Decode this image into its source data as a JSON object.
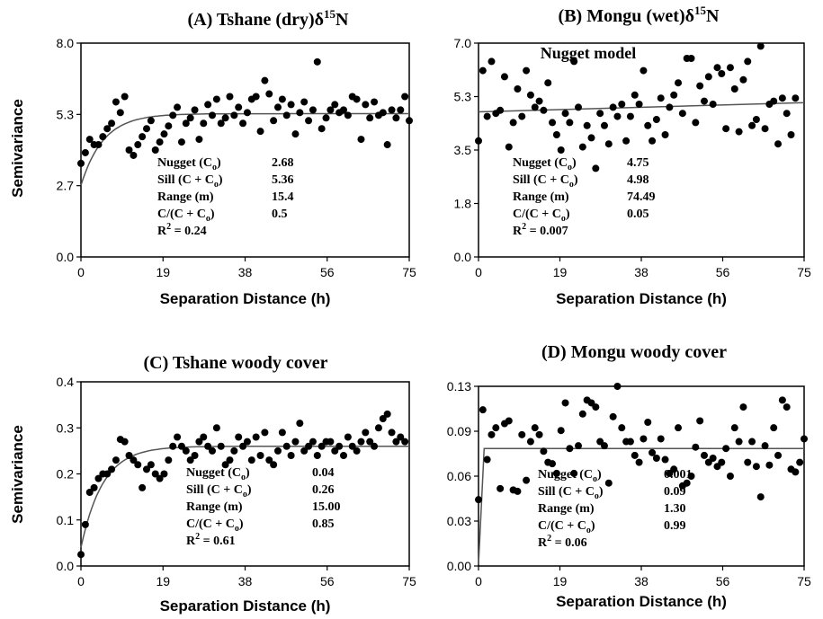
{
  "chart_data": [
    {
      "type": "scatter",
      "panel": "A",
      "title_main": "(A) Tshane (dry)δ",
      "title_sup": "15",
      "title_end": "N",
      "subtitle": "",
      "xlabel": "Separation Distance (h)",
      "ylabel": "Semivariance",
      "xlim": [
        0,
        75
      ],
      "ylim": [
        0.0,
        8.0
      ],
      "xticks": [
        "0",
        "19",
        "38",
        "56",
        "75"
      ],
      "yticks": [
        "0.0",
        "2.7",
        "5.3",
        "8.0"
      ],
      "model": {
        "nugget": 2.68,
        "sill": 5.36,
        "range": 15.4
      },
      "stats": [
        {
          "label": "Nugget (C",
          "sub": "o",
          "tail": ")",
          "value": "2.68"
        },
        {
          "label": "Sill (C + C",
          "sub": "o",
          "tail": ")",
          "value": "5.36"
        },
        {
          "label": "Range (m)",
          "sub": "",
          "tail": "",
          "value": "15.4"
        },
        {
          "label": "C/(C + C",
          "sub": "o",
          "tail": ")",
          "value": "0.5"
        }
      ],
      "r2": "= 0.24",
      "points": [
        [
          0,
          3.5
        ],
        [
          1,
          3.9
        ],
        [
          2,
          4.4
        ],
        [
          3,
          4.2
        ],
        [
          4,
          4.2
        ],
        [
          5,
          4.5
        ],
        [
          6,
          4.8
        ],
        [
          7,
          5.0
        ],
        [
          8,
          5.8
        ],
        [
          9,
          5.4
        ],
        [
          10,
          6.0
        ],
        [
          11,
          4.0
        ],
        [
          12,
          3.8
        ],
        [
          13,
          4.2
        ],
        [
          14,
          4.5
        ],
        [
          15,
          4.8
        ],
        [
          16,
          5.1
        ],
        [
          17,
          4.0
        ],
        [
          18,
          4.3
        ],
        [
          19,
          4.6
        ],
        [
          20,
          4.9
        ],
        [
          21,
          5.3
        ],
        [
          22,
          5.6
        ],
        [
          23,
          4.3
        ],
        [
          24,
          5.0
        ],
        [
          25,
          5.2
        ],
        [
          26,
          5.5
        ],
        [
          27,
          4.4
        ],
        [
          28,
          5.0
        ],
        [
          29,
          5.7
        ],
        [
          30,
          5.3
        ],
        [
          31,
          5.9
        ],
        [
          32,
          5.0
        ],
        [
          33,
          5.2
        ],
        [
          34,
          6.0
        ],
        [
          35,
          5.3
        ],
        [
          36,
          5.6
        ],
        [
          37,
          5.0
        ],
        [
          38,
          5.4
        ],
        [
          39,
          5.9
        ],
        [
          40,
          6.0
        ],
        [
          41,
          4.7
        ],
        [
          42,
          6.6
        ],
        [
          43,
          6.1
        ],
        [
          44,
          5.1
        ],
        [
          45,
          5.6
        ],
        [
          46,
          5.9
        ],
        [
          47,
          5.3
        ],
        [
          48,
          5.7
        ],
        [
          49,
          4.6
        ],
        [
          50,
          5.4
        ],
        [
          51,
          5.8
        ],
        [
          52,
          5.1
        ],
        [
          53,
          5.5
        ],
        [
          54,
          7.3
        ],
        [
          55,
          4.8
        ],
        [
          56,
          5.2
        ],
        [
          57,
          5.5
        ],
        [
          58,
          5.7
        ],
        [
          59,
          5.4
        ],
        [
          60,
          5.5
        ],
        [
          61,
          5.3
        ],
        [
          62,
          6.0
        ],
        [
          63,
          5.9
        ],
        [
          64,
          4.4
        ],
        [
          65,
          5.7
        ],
        [
          66,
          5.2
        ],
        [
          67,
          5.8
        ],
        [
          68,
          5.3
        ],
        [
          69,
          5.4
        ],
        [
          70,
          4.2
        ],
        [
          71,
          5.5
        ],
        [
          72,
          5.2
        ],
        [
          73,
          5.5
        ],
        [
          74,
          6.0
        ],
        [
          75,
          5.1
        ]
      ]
    },
    {
      "type": "scatter",
      "panel": "B",
      "title_main": "(B) Mongu (wet)δ",
      "title_sup": "15",
      "title_end": "N",
      "subtitle": "Nugget model",
      "xlabel": "Separation Distance (h)",
      "ylabel": "",
      "xlim": [
        0,
        75
      ],
      "ylim": [
        0.0,
        7.0
      ],
      "xticks": [
        "0",
        "19",
        "38",
        "56",
        "75"
      ],
      "yticks": [
        "0.0",
        "1.8",
        "3.5",
        "5.3",
        "7.0"
      ],
      "model": {
        "nugget": 4.75,
        "sill": 4.98,
        "range": 74.49
      },
      "stats": [
        {
          "label": "Nugget (C",
          "sub": "o",
          "tail": ")",
          "value": "4.75"
        },
        {
          "label": "Sill (C + C",
          "sub": "o",
          "tail": ")",
          "value": "4.98"
        },
        {
          "label": "Range (m)",
          "sub": "",
          "tail": "",
          "value": "74.49"
        },
        {
          "label": "C/(C + C",
          "sub": "o",
          "tail": ")",
          "value": "0.05"
        }
      ],
      "r2": "= 0.007",
      "points": [
        [
          0,
          3.8
        ],
        [
          1,
          6.1
        ],
        [
          2,
          4.6
        ],
        [
          3,
          6.4
        ],
        [
          4,
          4.7
        ],
        [
          5,
          4.8
        ],
        [
          6,
          5.9
        ],
        [
          7,
          3.6
        ],
        [
          8,
          4.4
        ],
        [
          9,
          5.5
        ],
        [
          10,
          4.6
        ],
        [
          11,
          6.1
        ],
        [
          12,
          5.3
        ],
        [
          13,
          4.9
        ],
        [
          14,
          5.1
        ],
        [
          15,
          4.8
        ],
        [
          16,
          5.7
        ],
        [
          17,
          4.4
        ],
        [
          18,
          4.0
        ],
        [
          19,
          3.5
        ],
        [
          20,
          4.7
        ],
        [
          21,
          4.4
        ],
        [
          22,
          6.4
        ],
        [
          23,
          4.9
        ],
        [
          24,
          3.6
        ],
        [
          25,
          4.3
        ],
        [
          26,
          3.9
        ],
        [
          27,
          2.9
        ],
        [
          28,
          4.7
        ],
        [
          29,
          4.3
        ],
        [
          30,
          3.7
        ],
        [
          31,
          4.9
        ],
        [
          32,
          4.6
        ],
        [
          33,
          5.0
        ],
        [
          34,
          3.8
        ],
        [
          35,
          4.6
        ],
        [
          36,
          5.3
        ],
        [
          37,
          5.0
        ],
        [
          38,
          6.1
        ],
        [
          39,
          4.3
        ],
        [
          40,
          3.8
        ],
        [
          41,
          4.5
        ],
        [
          42,
          5.2
        ],
        [
          43,
          4.0
        ],
        [
          44,
          4.9
        ],
        [
          45,
          5.3
        ],
        [
          46,
          5.7
        ],
        [
          47,
          4.7
        ],
        [
          48,
          6.5
        ],
        [
          49,
          6.5
        ],
        [
          50,
          4.4
        ],
        [
          51,
          5.6
        ],
        [
          52,
          5.1
        ],
        [
          53,
          5.9
        ],
        [
          54,
          5.0
        ],
        [
          55,
          6.2
        ],
        [
          56,
          6.0
        ],
        [
          57,
          4.2
        ],
        [
          58,
          6.2
        ],
        [
          59,
          5.5
        ],
        [
          60,
          4.1
        ],
        [
          61,
          5.8
        ],
        [
          62,
          6.4
        ],
        [
          63,
          4.3
        ],
        [
          64,
          4.5
        ],
        [
          65,
          6.9
        ],
        [
          66,
          4.2
        ],
        [
          67,
          5.0
        ],
        [
          68,
          5.1
        ],
        [
          69,
          3.7
        ],
        [
          70,
          5.2
        ],
        [
          71,
          4.7
        ],
        [
          72,
          4.0
        ],
        [
          73,
          5.2
        ]
      ]
    },
    {
      "type": "scatter",
      "panel": "C",
      "title_main": "(C) Tshane woody cover",
      "title_sup": "",
      "title_end": "",
      "subtitle": "",
      "xlabel": "Separation Distance (h)",
      "ylabel": "Semivariance",
      "xlim": [
        0,
        75
      ],
      "ylim": [
        0.0,
        0.4
      ],
      "xticks": [
        "0",
        "19",
        "38",
        "56",
        "75"
      ],
      "yticks": [
        "0.0",
        "0.1",
        "0.2",
        "0.3",
        "0.4"
      ],
      "model": {
        "nugget": 0.04,
        "sill": 0.26,
        "range": 15.0
      },
      "stats": [
        {
          "label": "Nugget (C",
          "sub": "o",
          "tail": ")",
          "value": "0.04"
        },
        {
          "label": "Sill (C + C",
          "sub": "o",
          "tail": ")",
          "value": "0.26"
        },
        {
          "label": "Range (m)",
          "sub": "",
          "tail": "",
          "value": "15.00"
        },
        {
          "label": "C/(C + C",
          "sub": "o",
          "tail": ")",
          "value": "0.85"
        }
      ],
      "r2": "= 0.61",
      "points": [
        [
          0,
          0.025
        ],
        [
          1,
          0.09
        ],
        [
          2,
          0.16
        ],
        [
          3,
          0.17
        ],
        [
          4,
          0.19
        ],
        [
          5,
          0.2
        ],
        [
          6,
          0.2
        ],
        [
          7,
          0.21
        ],
        [
          8,
          0.23
        ],
        [
          9,
          0.275
        ],
        [
          10,
          0.27
        ],
        [
          11,
          0.24
        ],
        [
          12,
          0.23
        ],
        [
          13,
          0.22
        ],
        [
          14,
          0.17
        ],
        [
          15,
          0.21
        ],
        [
          16,
          0.22
        ],
        [
          17,
          0.2
        ],
        [
          18,
          0.19
        ],
        [
          19,
          0.2
        ],
        [
          20,
          0.23
        ],
        [
          21,
          0.26
        ],
        [
          22,
          0.28
        ],
        [
          23,
          0.26
        ],
        [
          24,
          0.25
        ],
        [
          25,
          0.23
        ],
        [
          26,
          0.24
        ],
        [
          27,
          0.27
        ],
        [
          28,
          0.28
        ],
        [
          29,
          0.26
        ],
        [
          30,
          0.25
        ],
        [
          31,
          0.3
        ],
        [
          32,
          0.26
        ],
        [
          33,
          0.22
        ],
        [
          34,
          0.23
        ],
        [
          35,
          0.25
        ],
        [
          36,
          0.28
        ],
        [
          37,
          0.26
        ],
        [
          38,
          0.27
        ],
        [
          39,
          0.23
        ],
        [
          40,
          0.28
        ],
        [
          41,
          0.24
        ],
        [
          42,
          0.29
        ],
        [
          43,
          0.23
        ],
        [
          44,
          0.22
        ],
        [
          45,
          0.25
        ],
        [
          46,
          0.29
        ],
        [
          47,
          0.26
        ],
        [
          48,
          0.24
        ],
        [
          49,
          0.27
        ],
        [
          50,
          0.31
        ],
        [
          51,
          0.25
        ],
        [
          52,
          0.26
        ],
        [
          53,
          0.27
        ],
        [
          54,
          0.24
        ],
        [
          55,
          0.26
        ],
        [
          56,
          0.27
        ],
        [
          57,
          0.27
        ],
        [
          58,
          0.25
        ],
        [
          59,
          0.26
        ],
        [
          60,
          0.24
        ],
        [
          61,
          0.28
        ],
        [
          62,
          0.26
        ],
        [
          63,
          0.25
        ],
        [
          64,
          0.27
        ],
        [
          65,
          0.29
        ],
        [
          66,
          0.27
        ],
        [
          67,
          0.26
        ],
        [
          68,
          0.3
        ],
        [
          69,
          0.32
        ],
        [
          70,
          0.33
        ],
        [
          71,
          0.29
        ],
        [
          72,
          0.27
        ],
        [
          73,
          0.28
        ],
        [
          74,
          0.27
        ]
      ]
    },
    {
      "type": "scatter",
      "panel": "D",
      "title_main": "(D) Mongu woody cover",
      "title_sup": "",
      "title_end": "",
      "subtitle": "",
      "xlabel": "Separation Distance (h)",
      "ylabel": "",
      "xlim": [
        0,
        75
      ],
      "ylim": [
        0.0,
        0.13
      ],
      "xticks": [
        "0",
        "19",
        "38",
        "56",
        "75"
      ],
      "yticks": [
        "0.00",
        "0.03",
        "0.06",
        "0.09",
        "0.13"
      ],
      "model": {
        "nugget": 0.001,
        "sill": 0.09,
        "range": 1.3,
        "plateau": 0.085
      },
      "stats": [
        {
          "label": "Nugget (C",
          "sub": "o",
          "tail": ")",
          "value": "0.001"
        },
        {
          "label": "Sill (C + C",
          "sub": "o",
          "tail": ")",
          "value": "0.09"
        },
        {
          "label": "Range (m)",
          "sub": "",
          "tail": "",
          "value": "1.30"
        },
        {
          "label": "C/(C + C",
          "sub": "o",
          "tail": ")",
          "value": "0.99"
        }
      ],
      "r2": "= 0.06",
      "points": [
        [
          0,
          0.048
        ],
        [
          1,
          0.113
        ],
        [
          2,
          0.077
        ],
        [
          3,
          0.095
        ],
        [
          4,
          0.1
        ],
        [
          5,
          0.056
        ],
        [
          6,
          0.103
        ],
        [
          7,
          0.105
        ],
        [
          8,
          0.055
        ],
        [
          9,
          0.054
        ],
        [
          10,
          0.095
        ],
        [
          11,
          0.062
        ],
        [
          12,
          0.09
        ],
        [
          13,
          0.1
        ],
        [
          14,
          0.095
        ],
        [
          15,
          0.083
        ],
        [
          16,
          0.075
        ],
        [
          17,
          0.074
        ],
        [
          18,
          0.067
        ],
        [
          19,
          0.098
        ],
        [
          20,
          0.118
        ],
        [
          21,
          0.085
        ],
        [
          22,
          0.067
        ],
        [
          23,
          0.087
        ],
        [
          24,
          0.11
        ],
        [
          25,
          0.12
        ],
        [
          26,
          0.118
        ],
        [
          27,
          0.115
        ],
        [
          28,
          0.09
        ],
        [
          29,
          0.087
        ],
        [
          30,
          0.06
        ],
        [
          31,
          0.108
        ],
        [
          32,
          0.13
        ],
        [
          33,
          0.1
        ],
        [
          34,
          0.09
        ],
        [
          35,
          0.09
        ],
        [
          36,
          0.08
        ],
        [
          37,
          0.075
        ],
        [
          38,
          0.092
        ],
        [
          39,
          0.104
        ],
        [
          40,
          0.082
        ],
        [
          41,
          0.078
        ],
        [
          42,
          0.092
        ],
        [
          43,
          0.077
        ],
        [
          44,
          0.067
        ],
        [
          45,
          0.07
        ],
        [
          46,
          0.1
        ],
        [
          47,
          0.058
        ],
        [
          48,
          0.06
        ],
        [
          49,
          0.065
        ],
        [
          50,
          0.086
        ],
        [
          51,
          0.105
        ],
        [
          52,
          0.08
        ],
        [
          53,
          0.075
        ],
        [
          54,
          0.078
        ],
        [
          55,
          0.072
        ],
        [
          56,
          0.075
        ],
        [
          57,
          0.085
        ],
        [
          58,
          0.065
        ],
        [
          59,
          0.1
        ],
        [
          60,
          0.09
        ],
        [
          61,
          0.115
        ],
        [
          62,
          0.075
        ],
        [
          63,
          0.09
        ],
        [
          64,
          0.072
        ],
        [
          65,
          0.05
        ],
        [
          66,
          0.087
        ],
        [
          67,
          0.073
        ],
        [
          68,
          0.1
        ],
        [
          69,
          0.08
        ],
        [
          70,
          0.12
        ],
        [
          71,
          0.115
        ],
        [
          72,
          0.07
        ],
        [
          73,
          0.068
        ],
        [
          74,
          0.075
        ],
        [
          75,
          0.092
        ]
      ]
    }
  ]
}
